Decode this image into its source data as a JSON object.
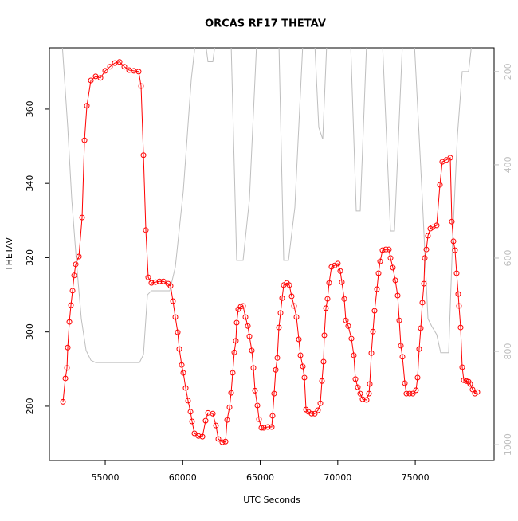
{
  "chart_data": {
    "type": "line",
    "title": "ORCAS RF17 THETAV",
    "x_label": "UTC Seconds",
    "y_label": "THETAV",
    "xlim": [
      51400,
      80085
    ],
    "xticks": [
      55000,
      60000,
      65000,
      70000,
      75000
    ],
    "ylim": [
      265.4,
      376.5
    ],
    "yticks": [
      280,
      300,
      320,
      340,
      360
    ],
    "y2lim": [
      1034,
      149
    ],
    "y2ticks": [
      200,
      400,
      600,
      800,
      1000
    ],
    "series": [
      {
        "color": "#bebebe",
        "axis": "y2",
        "markers": false,
        "x": [
          52224,
          52584,
          52841,
          53150,
          53458,
          53766,
          54075,
          54383,
          57210,
          57467,
          57724,
          57981,
          59163,
          59523,
          60037,
          60551,
          60808,
          61476,
          61630,
          61939,
          62093,
          63121,
          63481,
          63892,
          64303,
          64766,
          66205,
          66514,
          66822,
          67233,
          67747,
          68518,
          68775,
          69032,
          69290,
          70832,
          71192,
          71449,
          71860,
          72888,
          73402,
          73659,
          74173,
          74944,
          75458,
          75818,
          76075,
          76383,
          76640,
          77154,
          77411,
          77720,
          78028,
          78439,
          78645
        ],
        "values": [
          140,
          320,
          474,
          610,
          730,
          798,
          819,
          824,
          824,
          807,
          679,
          670,
          670,
          619,
          456,
          217,
          140,
          140,
          179,
          179,
          140,
          140,
          605,
          605,
          474,
          140,
          140,
          605,
          605,
          491,
          140,
          140,
          320,
          345,
          140,
          140,
          499,
          499,
          140,
          140,
          542,
          542,
          140,
          140,
          474,
          730,
          747,
          764,
          803,
          803,
          559,
          337,
          200,
          200,
          140
        ]
      },
      {
        "color": "#ff0000",
        "markers": true,
        "x": [
          52276,
          52430,
          52533,
          52584,
          52687,
          52790,
          52893,
          52995,
          53098,
          53304,
          53509,
          53664,
          53818,
          54075,
          54383,
          54692,
          55000,
          55308,
          55617,
          55925,
          56234,
          56542,
          56850,
          57158,
          57313,
          57467,
          57621,
          57775,
          57981,
          58238,
          58495,
          58752,
          59060,
          59214,
          59369,
          59523,
          59677,
          59780,
          59934,
          60037,
          60191,
          60345,
          60500,
          60602,
          60756,
          61013,
          61270,
          61476,
          61630,
          61939,
          62144,
          62298,
          62555,
          62761,
          62864,
          63018,
          63121,
          63224,
          63326,
          63429,
          63481,
          63584,
          63738,
          63892,
          64046,
          64201,
          64303,
          64457,
          64560,
          64663,
          64817,
          64920,
          65074,
          65228,
          65485,
          65742,
          65794,
          65896,
          65999,
          66102,
          66205,
          66308,
          66411,
          66514,
          66719,
          66874,
          67028,
          67182,
          67336,
          67490,
          67593,
          67747,
          67850,
          67953,
          68107,
          68312,
          68518,
          68723,
          68878,
          68981,
          69083,
          69135,
          69238,
          69340,
          69443,
          69597,
          69803,
          70008,
          70162,
          70265,
          70419,
          70522,
          70676,
          70882,
          71037,
          71140,
          71294,
          71449,
          71603,
          71860,
          72014,
          72066,
          72169,
          72271,
          72374,
          72528,
          72631,
          72734,
          72888,
          73093,
          73299,
          73402,
          73556,
          73710,
          73865,
          73968,
          74071,
          74173,
          74328,
          74430,
          74636,
          74841,
          75047,
          75149,
          75252,
          75355,
          75458,
          75561,
          75612,
          75715,
          75818,
          75972,
          76126,
          76383,
          76589,
          76743,
          77000,
          77257,
          77360,
          77463,
          77565,
          77668,
          77771,
          77822,
          77925,
          78028,
          78131,
          78285,
          78439,
          78542,
          78696,
          78850,
          79004
        ],
        "values": [
          281.2,
          287.5,
          290.3,
          295.8,
          302.7,
          307.2,
          311.1,
          315.2,
          318.2,
          320.3,
          330.8,
          351.6,
          360.9,
          367.7,
          368.8,
          368.4,
          370.3,
          371.4,
          372.4,
          372.7,
          371.4,
          370.5,
          370.3,
          370.1,
          366.2,
          347.6,
          327.4,
          314.7,
          313.2,
          313.4,
          313.6,
          313.6,
          313.0,
          312.4,
          308.3,
          304.0,
          299.9,
          295.4,
          291.1,
          289.0,
          284.9,
          281.5,
          278.5,
          275.9,
          272.7,
          272.0,
          271.8,
          276.1,
          278.2,
          278.0,
          274.8,
          271.2,
          270.3,
          270.5,
          276.3,
          279.7,
          283.6,
          289.0,
          294.5,
          297.6,
          302.5,
          306.1,
          306.8,
          307.0,
          304.0,
          301.6,
          298.8,
          295.0,
          290.3,
          284.2,
          280.2,
          276.5,
          274.2,
          274.2,
          274.4,
          274.4,
          277.4,
          283.4,
          289.8,
          293.0,
          301.2,
          305.1,
          309.1,
          312.6,
          313.2,
          312.6,
          309.6,
          307.0,
          304.0,
          298.0,
          293.7,
          290.7,
          287.7,
          279.1,
          278.5,
          278.0,
          278.0,
          278.9,
          280.8,
          286.8,
          292.0,
          299.1,
          306.4,
          308.9,
          313.2,
          317.5,
          317.9,
          318.4,
          316.4,
          313.4,
          308.9,
          303.1,
          301.6,
          298.2,
          293.7,
          287.3,
          285.1,
          283.4,
          281.9,
          281.7,
          283.4,
          286.0,
          294.3,
          300.1,
          305.7,
          311.5,
          315.8,
          319.0,
          322.0,
          322.2,
          322.2,
          319.9,
          317.3,
          313.9,
          309.8,
          303.1,
          296.3,
          293.3,
          286.2,
          283.4,
          283.4,
          283.4,
          284.3,
          287.7,
          295.4,
          301.0,
          307.9,
          313.0,
          319.9,
          322.2,
          325.9,
          327.8,
          328.2,
          328.7,
          339.6,
          345.8,
          346.3,
          346.9,
          329.7,
          324.4,
          322.0,
          315.8,
          310.2,
          307.0,
          301.2,
          290.5,
          287.0,
          286.8,
          286.6,
          286.0,
          284.5,
          283.4,
          283.8
        ]
      }
    ]
  }
}
